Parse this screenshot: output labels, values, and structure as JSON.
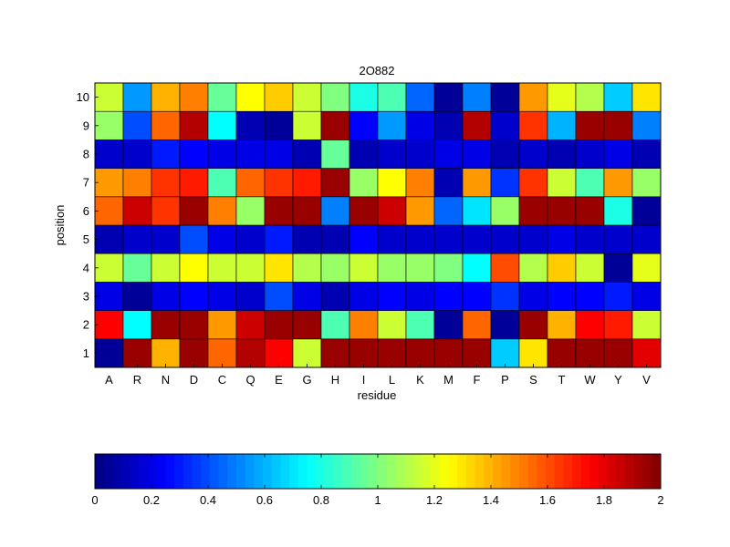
{
  "chart_data": {
    "type": "heatmap",
    "title": "2O882",
    "xlabel": "residue",
    "ylabel": "position",
    "x_categories": [
      "A",
      "R",
      "N",
      "D",
      "C",
      "Q",
      "E",
      "G",
      "H",
      "I",
      "L",
      "K",
      "M",
      "F",
      "P",
      "S",
      "T",
      "W",
      "Y",
      "V"
    ],
    "y_categories": [
      "1",
      "2",
      "3",
      "4",
      "5",
      "6",
      "7",
      "8",
      "9",
      "10"
    ],
    "values": [
      [
        0.05,
        1.95,
        1.4,
        1.95,
        1.55,
        1.9,
        1.75,
        1.15,
        1.95,
        1.95,
        1.95,
        1.95,
        1.95,
        1.95,
        0.65,
        1.3,
        1.95,
        1.95,
        1.95,
        1.8
      ],
      [
        1.75,
        0.75,
        1.95,
        1.95,
        1.45,
        1.85,
        1.95,
        1.95,
        0.9,
        1.5,
        1.15,
        0.9,
        0.05,
        1.55,
        0.05,
        1.95,
        1.4,
        1.75,
        1.7,
        1.15
      ],
      [
        0.2,
        0.05,
        0.2,
        0.25,
        0.2,
        0.15,
        0.4,
        0.2,
        0.1,
        0.2,
        0.25,
        0.2,
        0.25,
        0.25,
        0.35,
        0.2,
        0.25,
        0.25,
        0.3,
        0.2
      ],
      [
        1.15,
        0.95,
        1.15,
        1.25,
        1.15,
        1.15,
        1.3,
        1.1,
        1.05,
        1.15,
        1.05,
        1.05,
        1.0,
        0.75,
        1.6,
        1.1,
        1.35,
        1.15,
        0.05,
        1.2
      ],
      [
        0.1,
        0.15,
        0.15,
        0.4,
        0.2,
        0.15,
        0.3,
        0.1,
        0.1,
        0.25,
        0.15,
        0.15,
        0.15,
        0.15,
        0.15,
        0.15,
        0.2,
        0.15,
        0.15,
        0.15
      ],
      [
        1.55,
        1.85,
        1.65,
        1.95,
        1.5,
        1.05,
        1.95,
        1.95,
        0.5,
        1.95,
        1.85,
        1.45,
        0.45,
        0.7,
        1.05,
        1.95,
        1.95,
        1.95,
        0.8,
        0.05
      ],
      [
        1.45,
        1.5,
        1.65,
        1.7,
        0.9,
        1.55,
        1.65,
        1.7,
        1.95,
        1.05,
        1.25,
        1.5,
        0.1,
        1.45,
        0.35,
        1.65,
        1.15,
        0.9,
        1.45,
        1.05
      ],
      [
        0.15,
        0.15,
        0.3,
        0.25,
        0.2,
        0.2,
        0.2,
        0.1,
        0.95,
        0.1,
        0.15,
        0.15,
        0.2,
        0.2,
        0.1,
        0.15,
        0.1,
        0.15,
        0.2,
        0.1
      ],
      [
        1.05,
        0.4,
        1.55,
        1.9,
        0.75,
        0.1,
        0.05,
        1.15,
        1.95,
        0.25,
        0.55,
        0.2,
        0.1,
        1.9,
        0.15,
        1.65,
        0.6,
        1.95,
        1.95,
        0.5
      ],
      [
        1.15,
        0.55,
        1.4,
        1.5,
        0.95,
        1.25,
        1.35,
        1.15,
        1.0,
        0.8,
        0.9,
        0.45,
        0.05,
        0.5,
        0.05,
        1.45,
        1.2,
        1.1,
        0.65,
        1.3
      ]
    ],
    "colormap": "jet",
    "clim": [
      0,
      2
    ],
    "colorbar": {
      "orientation": "horizontal",
      "position": "bottom",
      "ticks": [
        "0",
        "0.2",
        "0.4",
        "0.6",
        "0.8",
        "1",
        "1.2",
        "1.4",
        "1.6",
        "1.8",
        "2"
      ]
    },
    "grid": true
  }
}
